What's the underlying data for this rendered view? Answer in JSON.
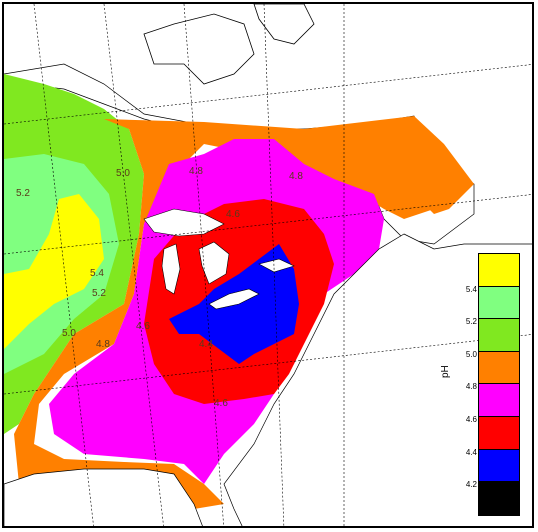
{
  "legend": {
    "axis_label": "pH",
    "bins": [
      {
        "value_range": "5.4+",
        "color": "#ffff00"
      },
      {
        "value_range": "5.2-5.4",
        "color": "#80ff80"
      },
      {
        "value_range": "5.0-5.2",
        "color": "#80e820"
      },
      {
        "value_range": "4.8-5.0",
        "color": "#ff8000"
      },
      {
        "value_range": "4.6-4.8",
        "color": "#ff00ff"
      },
      {
        "value_range": "4.4-4.6",
        "color": "#ff0000"
      },
      {
        "value_range": "4.2-4.4",
        "color": "#0000ff"
      },
      {
        "value_range": "<4.2",
        "color": "#000000"
      }
    ],
    "ticks": [
      "5.4",
      "5.2",
      "5.0",
      "4.8",
      "4.6",
      "4.4",
      "4.2"
    ]
  },
  "contour_labels": [
    "5.4",
    "5.2",
    "5.0",
    "5.2",
    "5.0",
    "4.8",
    "4.6",
    "4.8",
    "4.6",
    "4.8",
    "4.4",
    "4.6"
  ],
  "colors": {
    "ocean": "#ffffff",
    "lakes": "#ffffff",
    "yellow": "#ffff00",
    "lightgreen": "#80ff80",
    "green": "#80e820",
    "orange": "#ff8000",
    "magenta": "#ff00ff",
    "red": "#ff0000",
    "blue": "#0000ff"
  }
}
